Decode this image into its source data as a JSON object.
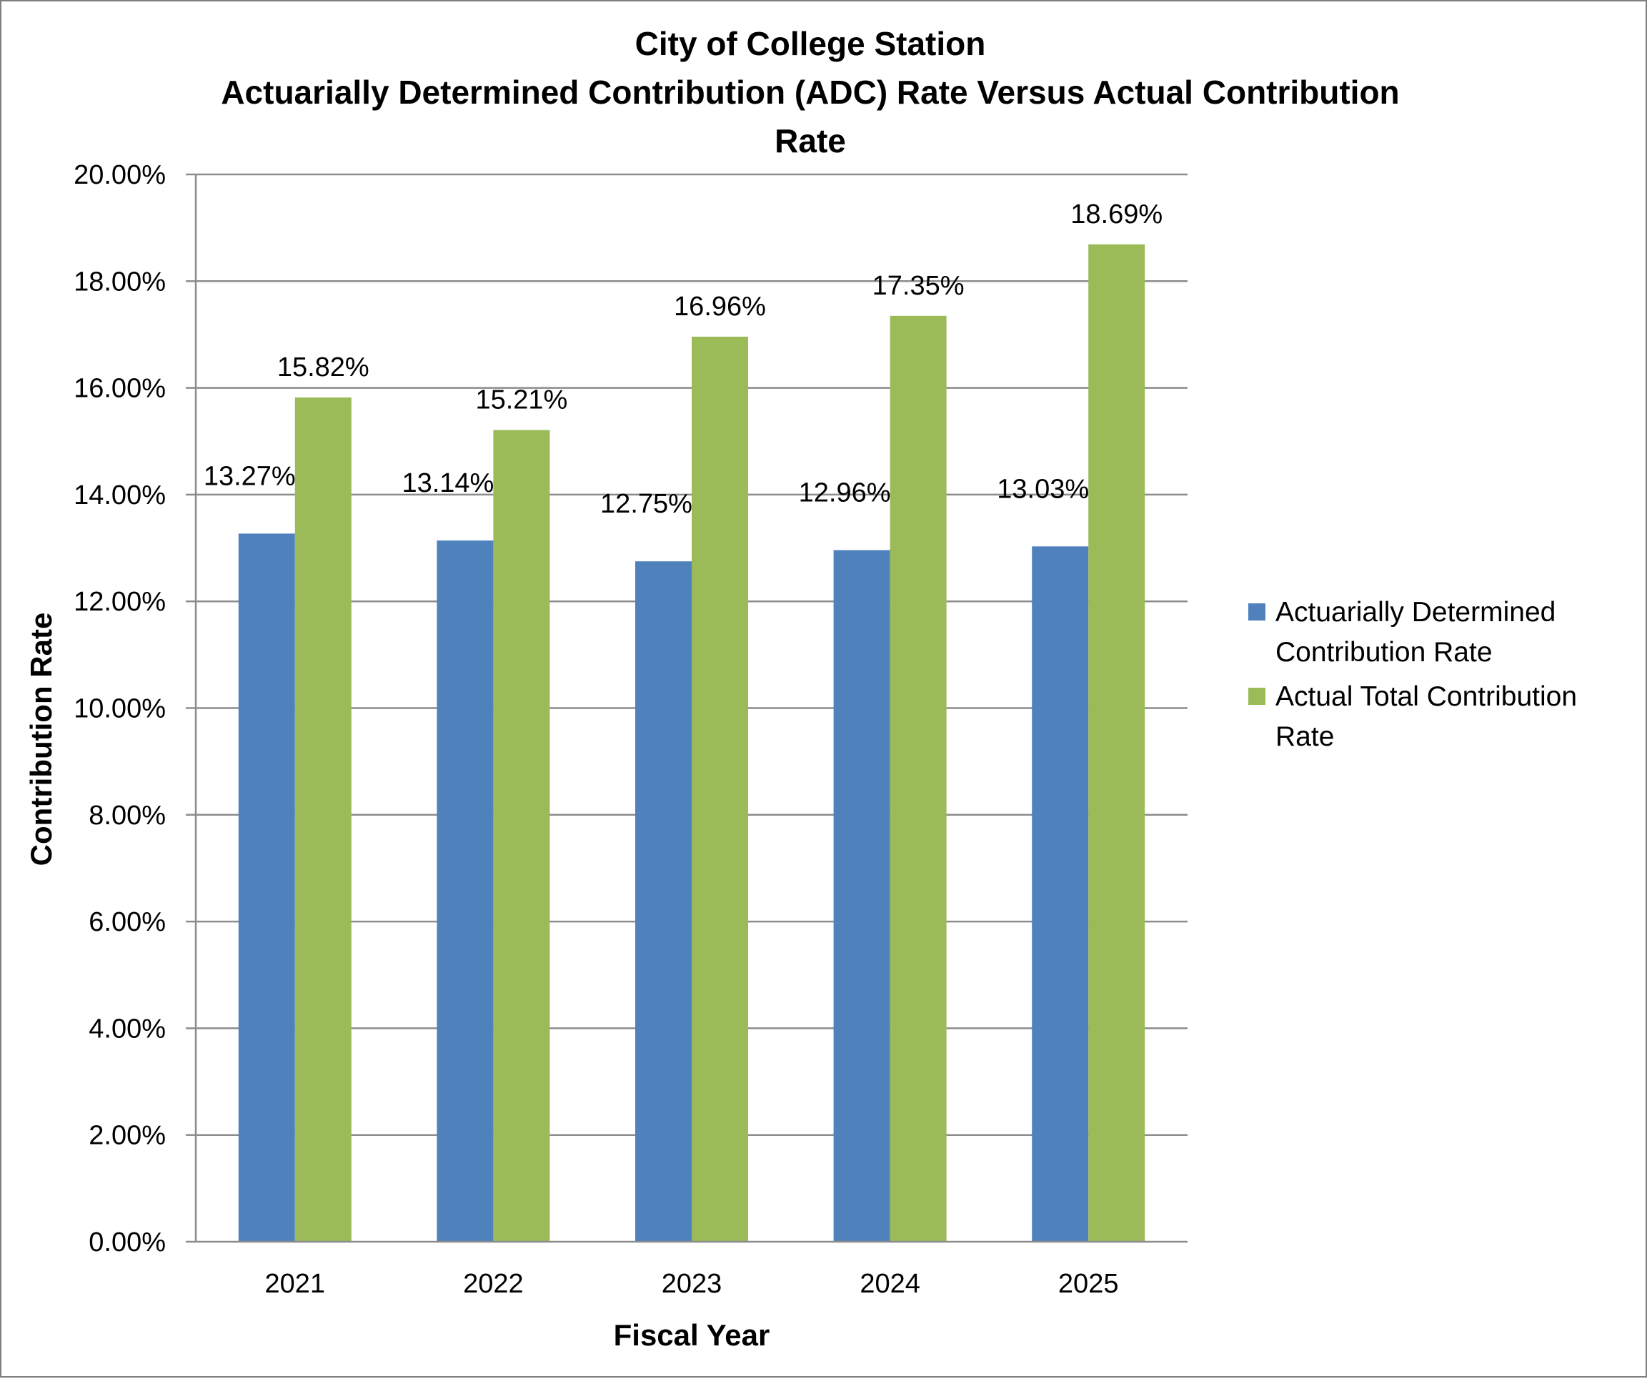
{
  "chart_data": {
    "type": "bar",
    "title": [
      "City of College Station",
      "Actuarially Determined Contribution (ADC) Rate Versus Actual Contribution",
      "Rate"
    ],
    "xlabel": "Fiscal Year",
    "ylabel": "Contribution Rate",
    "categories": [
      "2021",
      "2022",
      "2023",
      "2024",
      "2025"
    ],
    "series": [
      {
        "name": "Actuarially Determined Contribution Rate",
        "legend_lines": [
          "Actuarially Determined",
          "Contribution Rate"
        ],
        "color": "#4f81bd",
        "values": [
          13.27,
          13.14,
          12.75,
          12.96,
          13.03
        ],
        "labels": [
          "13.27%",
          "13.14%",
          "12.75%",
          "12.96%",
          "13.03%"
        ]
      },
      {
        "name": "Actual Total Contribution Rate",
        "legend_lines": [
          "Actual Total Contribution",
          "Rate"
        ],
        "color": "#9bbb59",
        "values": [
          15.82,
          15.21,
          16.96,
          17.35,
          18.69
        ],
        "labels": [
          "15.82%",
          "15.21%",
          "16.96%",
          "17.35%",
          "18.69%"
        ]
      }
    ],
    "ylim": [
      0,
      20
    ],
    "yticks": [
      0,
      2,
      4,
      6,
      8,
      10,
      12,
      14,
      16,
      18,
      20
    ],
    "ytick_labels": [
      "0.00%",
      "2.00%",
      "4.00%",
      "6.00%",
      "8.00%",
      "10.00%",
      "12.00%",
      "14.00%",
      "16.00%",
      "18.00%",
      "20.00%"
    ],
    "grid": true,
    "legend_position": "right",
    "gridline_color": "#8c8c8c"
  }
}
